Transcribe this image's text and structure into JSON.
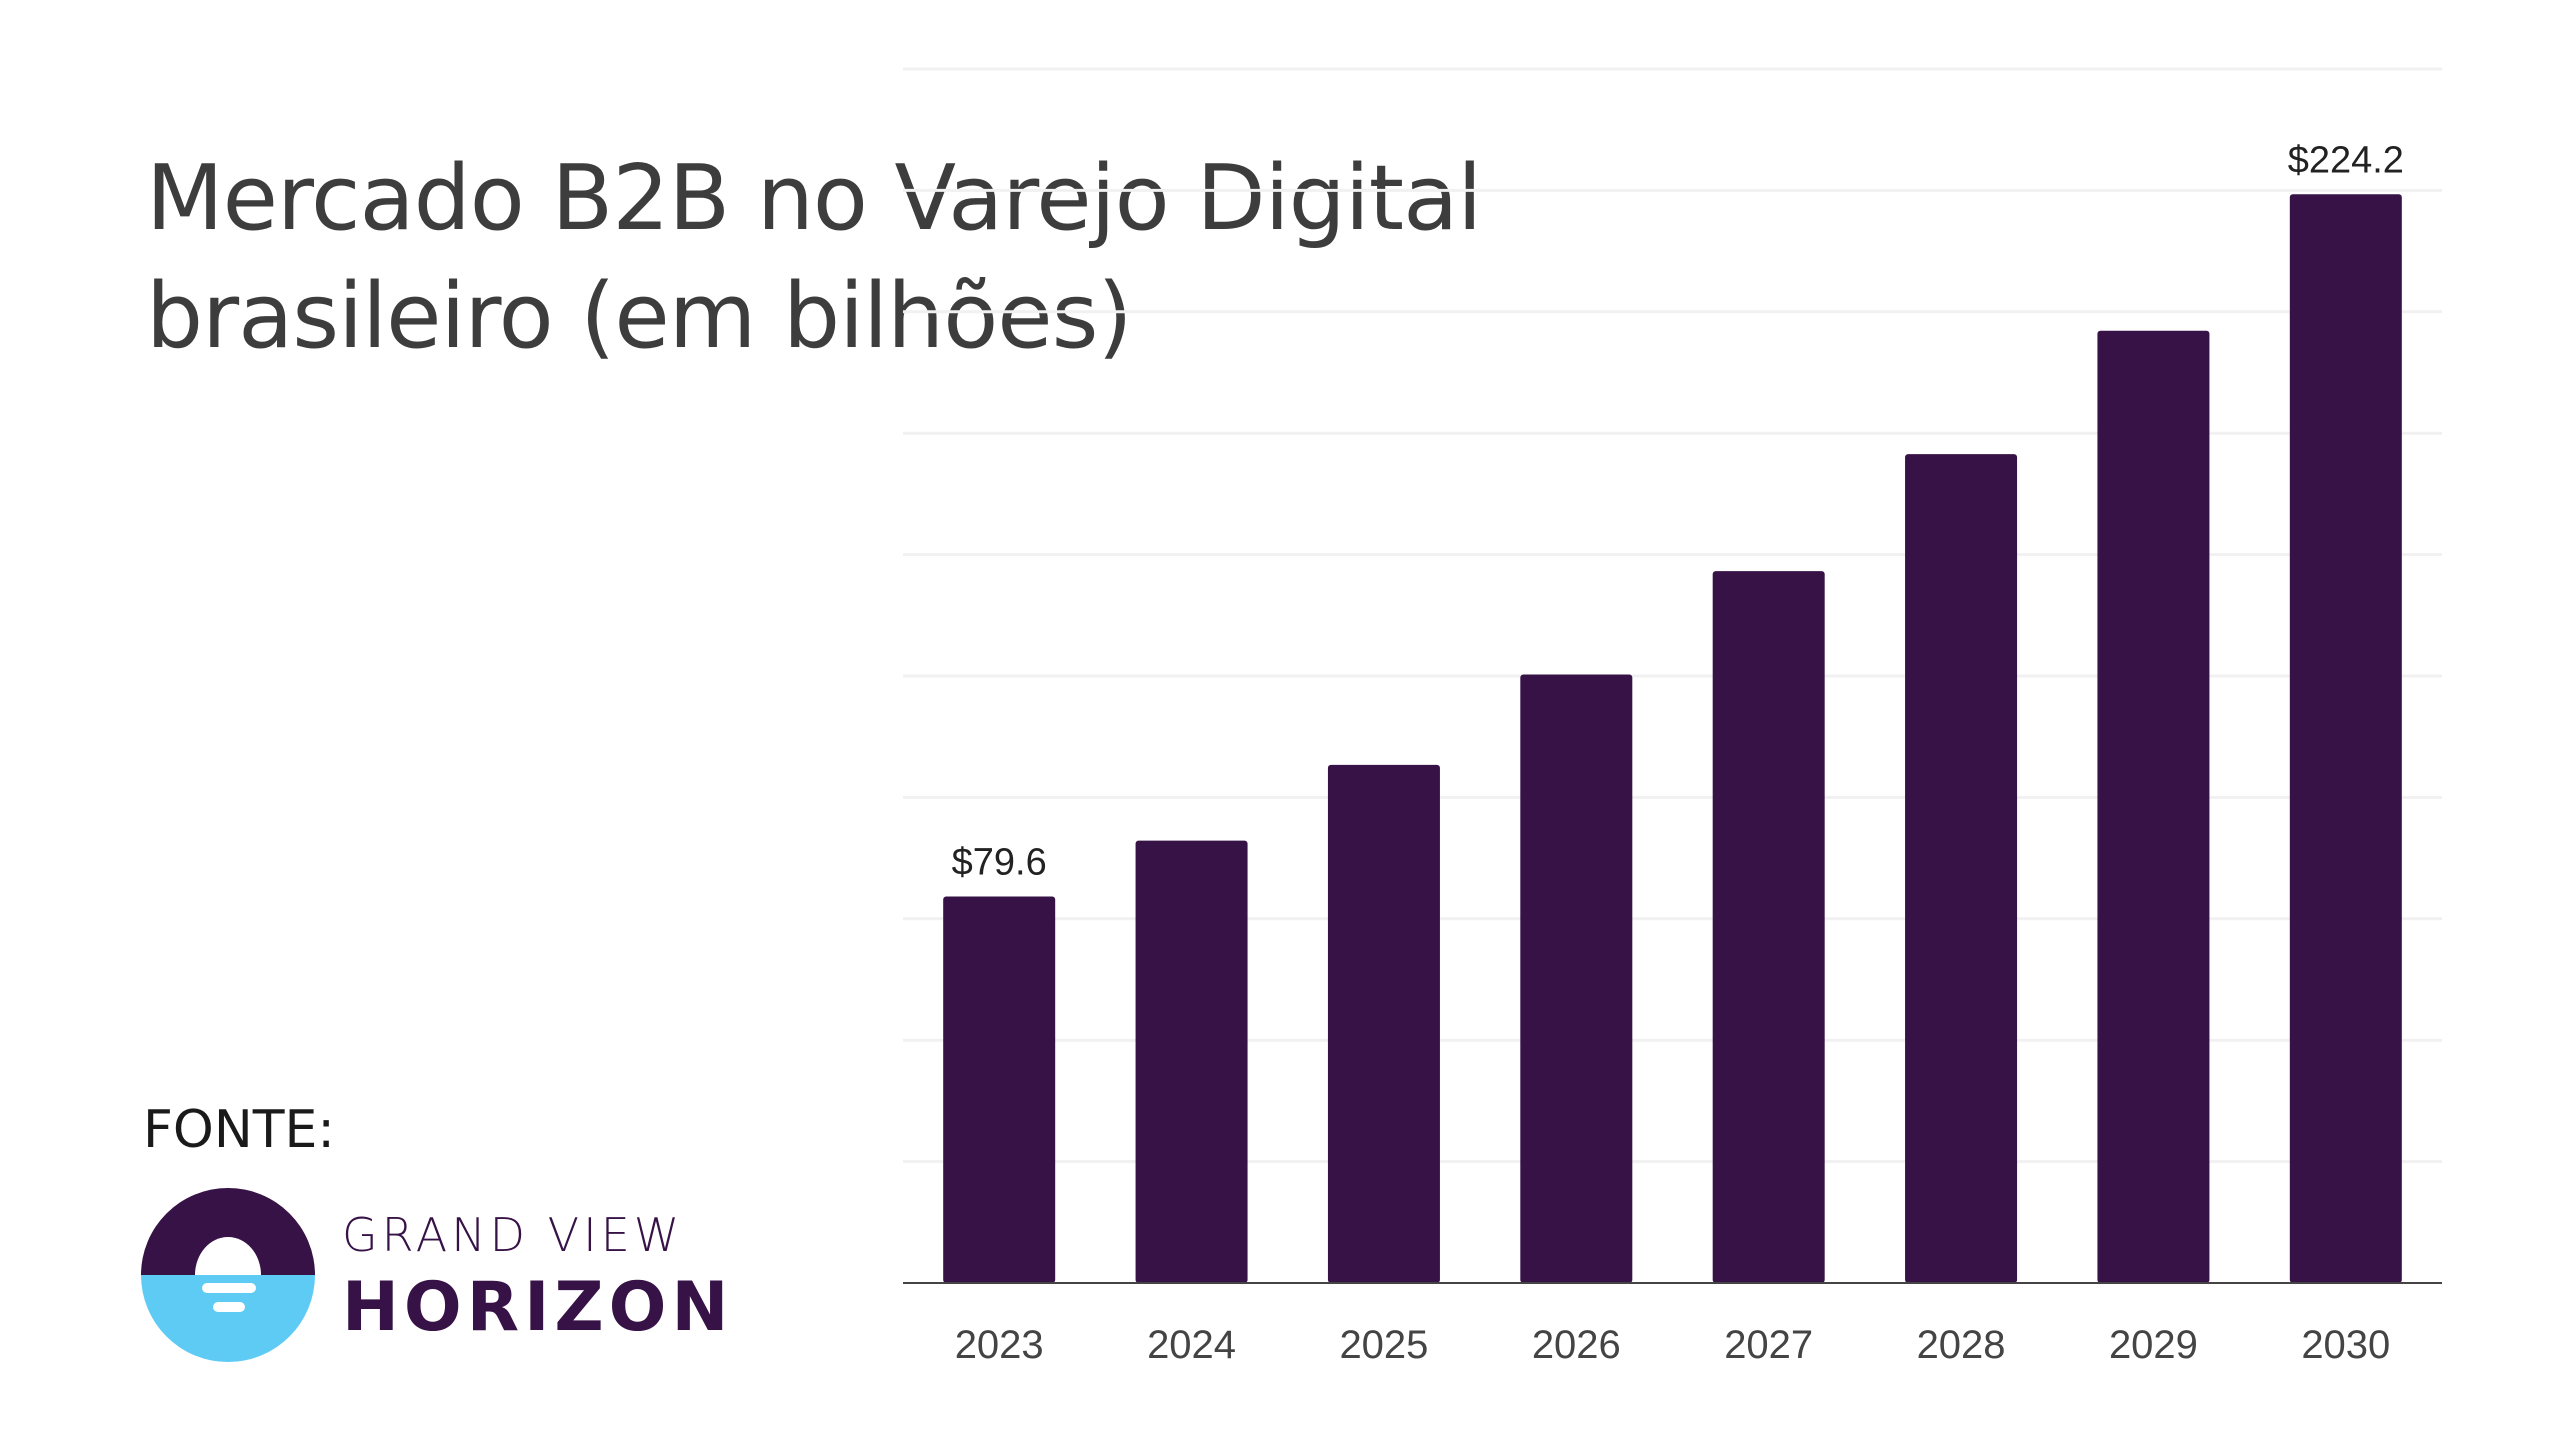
{
  "chart_data": {
    "type": "bar",
    "title": [
      "Mercado B2B no Varejo Digital",
      "brasileiro (em bilhões)"
    ],
    "xlabel": "",
    "ylabel": "",
    "categories": [
      "2023",
      "2024",
      "2025",
      "2026",
      "2027",
      "2028",
      "2029",
      "2030"
    ],
    "values": [
      79.6,
      91.1,
      106.7,
      125.3,
      146.6,
      170.7,
      196.1,
      224.2
    ],
    "data_labels": {
      "2023": "$79.6",
      "2030": "$224.2"
    },
    "ylim": [
      0,
      250
    ],
    "y_grid_step": 25,
    "grid": true,
    "y_tick_labels_shown": false,
    "bar_color": "#371246"
  },
  "source": {
    "label": "FONTE:",
    "logo_line1": "GRAND VIEW",
    "logo_line2": "HORIZON",
    "logo_colors": {
      "dark": "#371246",
      "light": "#5ecbf5"
    }
  }
}
